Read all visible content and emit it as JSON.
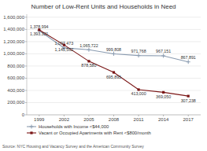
{
  "chart_data": {
    "type": "line",
    "title": "Number of Low-Rent Units and Households in Need",
    "x": [
      1999,
      2002,
      2005,
      2008,
      2011,
      2014,
      2017
    ],
    "xlim": [
      1997.5,
      2018.5
    ],
    "xticks": [
      1999,
      2002,
      2005,
      2008,
      2011,
      2014,
      2017
    ],
    "ylim": [
      0,
      1650000
    ],
    "yticks": [
      0,
      {
        "value": 200000,
        "label": "200,000"
      },
      {
        "value": 400000,
        "label": "400,000"
      },
      {
        "value": 600000,
        "label": "600,000"
      },
      {
        "value": 800000,
        "label": "800,000"
      },
      {
        "value": 1000000,
        "label": "1,000,000"
      },
      {
        "value": 1200000,
        "label": "1,200,000"
      },
      {
        "value": 1400000,
        "label": "1,400,000"
      },
      {
        "value": 1600000,
        "label": "1,600,000"
      }
    ],
    "grid": true,
    "legend": "bottom",
    "data_labels": true,
    "series": [
      {
        "name": "Households with Income <$44,000",
        "color": "#8a9bb0",
        "marker": "plus",
        "values": [
          1378994,
          1097473,
          1065722,
          999808,
          971768,
          967151,
          867891
        ],
        "value_labels": [
          "1,378,994",
          "1,097,473",
          "1,065,722",
          "999,808",
          "971,768",
          "967,151",
          "867,891"
        ]
      },
      {
        "name": "Vacant or Occupied Apartments with Rent <$800/month",
        "color": "#7a1515",
        "marker": "square",
        "values": [
          1393321,
          1145562,
          878580,
          695895,
          413000,
          369050,
          307238
        ],
        "value_labels": [
          "1,393,321",
          "1,145,562",
          "878,580",
          "695,895",
          "413,000",
          "369,050",
          "307,238"
        ]
      }
    ],
    "annotations": [
      "Source: NYC Housing and Vacancy Survey and the American Community Survey"
    ]
  }
}
